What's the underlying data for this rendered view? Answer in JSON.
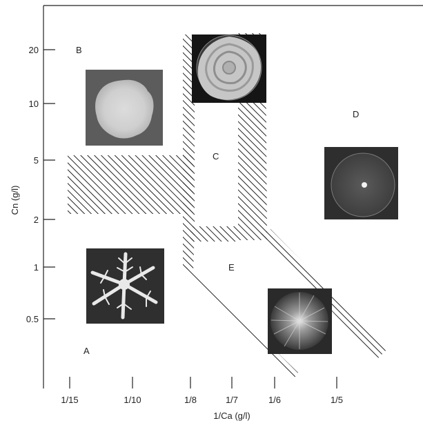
{
  "chart_data": {
    "type": "phase-diagram",
    "xlabel": "1/Ca (g/l)",
    "ylabel": "Cn (g/l)",
    "y_scale": "log",
    "x_ticks": [
      "1/15",
      "1/10",
      "1/8",
      "1/7",
      "1/6",
      "1/5"
    ],
    "y_ticks": [
      "20",
      "10",
      "5",
      "2",
      "1",
      "0.5"
    ],
    "regions": [
      {
        "label": "A"
      },
      {
        "label": "B"
      },
      {
        "label": "C"
      },
      {
        "label": "D"
      },
      {
        "label": "E"
      }
    ]
  }
}
